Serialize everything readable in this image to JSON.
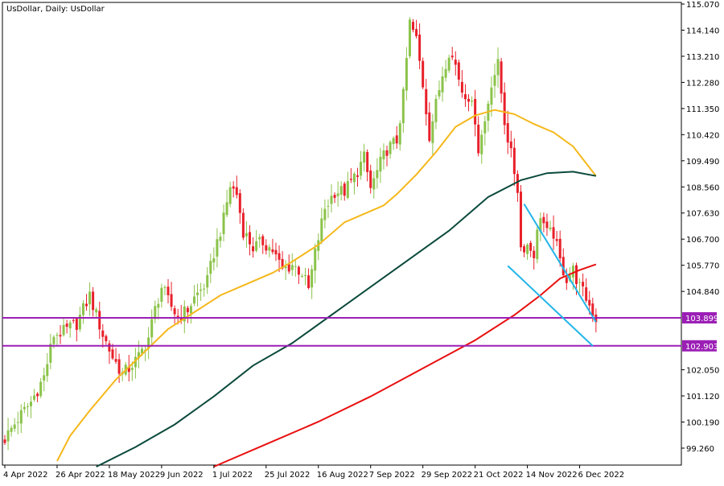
{
  "chart_data": {
    "type": "candlestick",
    "title": "UsDollar, Daily:  UsDollar",
    "ylim": [
      98.6,
      115.07
    ],
    "grid": false,
    "colors": {
      "bull": "#8bc34a",
      "bear": "#e8202a",
      "ma_fast": "#f5b81c",
      "ma_mid": "#0b4a3c",
      "ma_slow": "#e81010",
      "level_lines": "#9b1fb5",
      "trend_lines": "#23b5e8",
      "price_badge": "#9b1fb5"
    },
    "y_ticks": [
      "115.070",
      "114.140",
      "113.210",
      "112.280",
      "111.350",
      "110.420",
      "109.490",
      "108.560",
      "107.630",
      "106.700",
      "105.770",
      "104.840",
      "102.050",
      "101.120",
      "100.190",
      "99.260"
    ],
    "x_ticks": [
      {
        "label": "4 Apr 2022",
        "bar": 0
      },
      {
        "label": "26 Apr 2022",
        "bar": 16
      },
      {
        "label": "18 May 2022",
        "bar": 32
      },
      {
        "label": "9 Jun 2022",
        "bar": 48
      },
      {
        "label": "1 Jul 2022",
        "bar": 64
      },
      {
        "label": "25 Jul 2022",
        "bar": 80
      },
      {
        "label": "16 Aug 2022",
        "bar": 96
      },
      {
        "label": "7 Sep 2022",
        "bar": 112
      },
      {
        "label": "29 Sep 2022",
        "bar": 128
      },
      {
        "label": "21 Oct 2022",
        "bar": 144
      },
      {
        "label": "14 Nov 2022",
        "bar": 160
      },
      {
        "label": "6 Dec 2022",
        "bar": 176
      }
    ],
    "horizontal_levels": [
      {
        "value": 103.899,
        "label": "103.899"
      },
      {
        "value": 102.903,
        "label": "102.903"
      }
    ],
    "trend_lines": [
      {
        "from": {
          "bar": 159,
          "value": 107.95
        },
        "to": {
          "bar": 181,
          "value": 103.75
        }
      },
      {
        "from": {
          "bar": 154,
          "value": 105.75
        },
        "to": {
          "bar": 180,
          "value": 102.9
        }
      }
    ],
    "price_path": [
      {
        "bar": 0,
        "value": 99.6
      },
      {
        "bar": 4,
        "value": 100.3
      },
      {
        "bar": 8,
        "value": 100.9
      },
      {
        "bar": 12,
        "value": 101.8
      },
      {
        "bar": 15,
        "value": 103.3
      },
      {
        "bar": 18,
        "value": 103.4
      },
      {
        "bar": 22,
        "value": 103.7
      },
      {
        "bar": 26,
        "value": 104.7
      },
      {
        "bar": 28,
        "value": 104.0
      },
      {
        "bar": 30,
        "value": 103.3
      },
      {
        "bar": 33,
        "value": 102.5
      },
      {
        "bar": 36,
        "value": 101.9
      },
      {
        "bar": 38,
        "value": 102.1
      },
      {
        "bar": 41,
        "value": 102.5
      },
      {
        "bar": 44,
        "value": 103.2
      },
      {
        "bar": 46,
        "value": 104.2
      },
      {
        "bar": 48,
        "value": 105.0
      },
      {
        "bar": 50,
        "value": 104.5
      },
      {
        "bar": 53,
        "value": 103.9
      },
      {
        "bar": 56,
        "value": 104.2
      },
      {
        "bar": 58,
        "value": 104.6
      },
      {
        "bar": 62,
        "value": 105.2
      },
      {
        "bar": 64,
        "value": 106.2
      },
      {
        "bar": 67,
        "value": 107.4
      },
      {
        "bar": 69,
        "value": 108.6
      },
      {
        "bar": 71,
        "value": 108.3
      },
      {
        "bar": 73,
        "value": 107.0
      },
      {
        "bar": 76,
        "value": 106.4
      },
      {
        "bar": 79,
        "value": 106.6
      },
      {
        "bar": 82,
        "value": 106.3
      },
      {
        "bar": 85,
        "value": 105.6
      },
      {
        "bar": 88,
        "value": 105.8
      },
      {
        "bar": 91,
        "value": 105.5
      },
      {
        "bar": 93,
        "value": 104.9
      },
      {
        "bar": 95,
        "value": 106.2
      },
      {
        "bar": 98,
        "value": 107.8
      },
      {
        "bar": 101,
        "value": 108.4
      },
      {
        "bar": 104,
        "value": 108.4
      },
      {
        "bar": 107,
        "value": 108.9
      },
      {
        "bar": 110,
        "value": 109.6
      },
      {
        "bar": 112,
        "value": 108.5
      },
      {
        "bar": 115,
        "value": 109.4
      },
      {
        "bar": 117,
        "value": 109.9
      },
      {
        "bar": 120,
        "value": 110.2
      },
      {
        "bar": 122,
        "value": 111.8
      },
      {
        "bar": 124,
        "value": 114.4
      },
      {
        "bar": 126,
        "value": 113.8
      },
      {
        "bar": 128,
        "value": 112.2
      },
      {
        "bar": 130,
        "value": 110.4
      },
      {
        "bar": 132,
        "value": 111.5
      },
      {
        "bar": 134,
        "value": 112.6
      },
      {
        "bar": 136,
        "value": 113.4
      },
      {
        "bar": 138,
        "value": 112.9
      },
      {
        "bar": 140,
        "value": 112.0
      },
      {
        "bar": 142,
        "value": 111.8
      },
      {
        "bar": 144,
        "value": 111.0
      },
      {
        "bar": 145,
        "value": 109.9
      },
      {
        "bar": 147,
        "value": 110.9
      },
      {
        "bar": 149,
        "value": 112.3
      },
      {
        "bar": 151,
        "value": 112.9
      },
      {
        "bar": 153,
        "value": 110.9
      },
      {
        "bar": 155,
        "value": 109.7
      },
      {
        "bar": 157,
        "value": 108.5
      },
      {
        "bar": 158,
        "value": 106.4
      },
      {
        "bar": 160,
        "value": 106.5
      },
      {
        "bar": 162,
        "value": 106.2
      },
      {
        "bar": 164,
        "value": 107.6
      },
      {
        "bar": 166,
        "value": 106.9
      },
      {
        "bar": 168,
        "value": 106.9
      },
      {
        "bar": 170,
        "value": 105.9
      },
      {
        "bar": 172,
        "value": 105.3
      },
      {
        "bar": 174,
        "value": 105.6
      },
      {
        "bar": 176,
        "value": 105.0
      },
      {
        "bar": 178,
        "value": 104.6
      },
      {
        "bar": 180,
        "value": 104.1
      },
      {
        "bar": 181,
        "value": 103.85
      }
    ],
    "moving_averages": [
      {
        "role": "ma_fast",
        "points": [
          {
            "bar": 16,
            "value": 98.8
          },
          {
            "bar": 20,
            "value": 99.7
          },
          {
            "bar": 26,
            "value": 100.6
          },
          {
            "bar": 34,
            "value": 101.7
          },
          {
            "bar": 42,
            "value": 102.6
          },
          {
            "bar": 50,
            "value": 103.5
          },
          {
            "bar": 58,
            "value": 104.1
          },
          {
            "bar": 66,
            "value": 104.7
          },
          {
            "bar": 74,
            "value": 105.1
          },
          {
            "bar": 82,
            "value": 105.5
          },
          {
            "bar": 88,
            "value": 105.9
          },
          {
            "bar": 96,
            "value": 106.5
          },
          {
            "bar": 104,
            "value": 107.3
          },
          {
            "bar": 110,
            "value": 107.6
          },
          {
            "bar": 116,
            "value": 107.9
          },
          {
            "bar": 120,
            "value": 108.3
          },
          {
            "bar": 126,
            "value": 109.0
          },
          {
            "bar": 132,
            "value": 109.8
          },
          {
            "bar": 138,
            "value": 110.7
          },
          {
            "bar": 144,
            "value": 111.1
          },
          {
            "bar": 150,
            "value": 111.3
          },
          {
            "bar": 156,
            "value": 111.15
          },
          {
            "bar": 162,
            "value": 110.8
          },
          {
            "bar": 168,
            "value": 110.5
          },
          {
            "bar": 174,
            "value": 110.0
          },
          {
            "bar": 178,
            "value": 109.4
          },
          {
            "bar": 181,
            "value": 108.95
          }
        ]
      },
      {
        "role": "ma_mid",
        "points": [
          {
            "bar": 28,
            "value": 98.6
          },
          {
            "bar": 40,
            "value": 99.3
          },
          {
            "bar": 52,
            "value": 100.1
          },
          {
            "bar": 64,
            "value": 101.1
          },
          {
            "bar": 76,
            "value": 102.2
          },
          {
            "bar": 88,
            "value": 103.0
          },
          {
            "bar": 100,
            "value": 104.0
          },
          {
            "bar": 112,
            "value": 105.0
          },
          {
            "bar": 124,
            "value": 106.0
          },
          {
            "bar": 136,
            "value": 107.0
          },
          {
            "bar": 148,
            "value": 108.2
          },
          {
            "bar": 158,
            "value": 108.8
          },
          {
            "bar": 166,
            "value": 109.05
          },
          {
            "bar": 174,
            "value": 109.1
          },
          {
            "bar": 181,
            "value": 108.95
          }
        ]
      },
      {
        "role": "ma_slow",
        "points": [
          {
            "bar": 64,
            "value": 98.6
          },
          {
            "bar": 80,
            "value": 99.4
          },
          {
            "bar": 96,
            "value": 100.2
          },
          {
            "bar": 112,
            "value": 101.1
          },
          {
            "bar": 128,
            "value": 102.1
          },
          {
            "bar": 144,
            "value": 103.1
          },
          {
            "bar": 156,
            "value": 104.0
          },
          {
            "bar": 164,
            "value": 104.7
          },
          {
            "bar": 170,
            "value": 105.3
          },
          {
            "bar": 176,
            "value": 105.6
          },
          {
            "bar": 181,
            "value": 105.8
          }
        ]
      }
    ]
  }
}
